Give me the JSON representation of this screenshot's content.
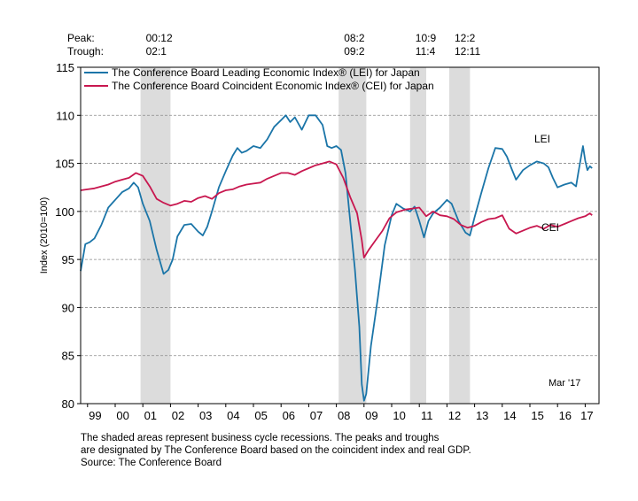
{
  "chart_data": {
    "type": "line",
    "title": "",
    "xlabel": "",
    "ylabel": "Index (2010=100)",
    "ylim": [
      80,
      115
    ],
    "yticks": [
      80,
      85,
      90,
      95,
      100,
      105,
      110,
      115
    ],
    "xlim": [
      1998.75,
      2017.5
    ],
    "xtick_labels": [
      "99",
      "00",
      "01",
      "02",
      "03",
      "04",
      "05",
      "06",
      "07",
      "08",
      "09",
      "10",
      "11",
      "12",
      "13",
      "14",
      "15",
      "16",
      "17"
    ],
    "grid": "horizontal dashed",
    "legend_placement": "top-left",
    "date_annotation": "Mar '17",
    "cycle_labels": {
      "peak_label": "Peak:",
      "trough_label": "Trough:",
      "items": [
        {
          "peak": "00:12",
          "trough": "02:1"
        },
        {
          "peak": "08:2",
          "trough": "09:2"
        },
        {
          "peak": "10:9",
          "trough": "11:4"
        },
        {
          "peak": "12:2",
          "trough": "12:11"
        }
      ]
    },
    "recessions": [
      {
        "start": 2000.917,
        "end": 2002.0
      },
      {
        "start": 2008.083,
        "end": 2009.083
      },
      {
        "start": 2010.667,
        "end": 2011.25
      },
      {
        "start": 2012.083,
        "end": 2012.833
      }
    ],
    "series": [
      {
        "name": "The Conference Board Leading Economic Index® (LEI) for Japan",
        "short_label": "LEI",
        "color": "#1b75a8",
        "points": [
          [
            1998.75,
            93.8
          ],
          [
            1998.92,
            96.6
          ],
          [
            1999.08,
            96.8
          ],
          [
            1999.25,
            97.2
          ],
          [
            1999.5,
            98.6
          ],
          [
            1999.75,
            100.4
          ],
          [
            2000.0,
            101.2
          ],
          [
            2000.25,
            102.0
          ],
          [
            2000.5,
            102.4
          ],
          [
            2000.67,
            103.0
          ],
          [
            2000.83,
            102.5
          ],
          [
            2001.0,
            100.8
          ],
          [
            2001.25,
            99.0
          ],
          [
            2001.5,
            96.0
          ],
          [
            2001.75,
            93.5
          ],
          [
            2001.92,
            93.9
          ],
          [
            2002.08,
            95.0
          ],
          [
            2002.25,
            97.4
          ],
          [
            2002.5,
            98.6
          ],
          [
            2002.75,
            98.7
          ],
          [
            2003.0,
            97.9
          ],
          [
            2003.17,
            97.5
          ],
          [
            2003.33,
            98.4
          ],
          [
            2003.5,
            100.0
          ],
          [
            2003.75,
            102.5
          ],
          [
            2004.0,
            104.2
          ],
          [
            2004.25,
            105.8
          ],
          [
            2004.42,
            106.6
          ],
          [
            2004.58,
            106.1
          ],
          [
            2004.75,
            106.3
          ],
          [
            2005.0,
            106.8
          ],
          [
            2005.25,
            106.6
          ],
          [
            2005.5,
            107.5
          ],
          [
            2005.75,
            108.8
          ],
          [
            2006.0,
            109.5
          ],
          [
            2006.17,
            110.0
          ],
          [
            2006.33,
            109.3
          ],
          [
            2006.5,
            109.8
          ],
          [
            2006.75,
            108.5
          ],
          [
            2007.0,
            110.0
          ],
          [
            2007.25,
            110.0
          ],
          [
            2007.5,
            109.0
          ],
          [
            2007.67,
            106.8
          ],
          [
            2007.83,
            106.6
          ],
          [
            2008.0,
            106.8
          ],
          [
            2008.17,
            106.4
          ],
          [
            2008.33,
            104.0
          ],
          [
            2008.5,
            99.0
          ],
          [
            2008.67,
            94.0
          ],
          [
            2008.83,
            88.0
          ],
          [
            2008.92,
            82.0
          ],
          [
            2009.0,
            80.3
          ],
          [
            2009.08,
            81.0
          ],
          [
            2009.25,
            86.0
          ],
          [
            2009.5,
            91.0
          ],
          [
            2009.75,
            96.5
          ],
          [
            2010.0,
            99.6
          ],
          [
            2010.17,
            100.8
          ],
          [
            2010.42,
            100.3
          ],
          [
            2010.67,
            100.0
          ],
          [
            2010.83,
            100.5
          ],
          [
            2011.0,
            99.0
          ],
          [
            2011.17,
            97.3
          ],
          [
            2011.33,
            99.0
          ],
          [
            2011.5,
            99.8
          ],
          [
            2011.75,
            100.4
          ],
          [
            2012.0,
            101.2
          ],
          [
            2012.17,
            100.8
          ],
          [
            2012.42,
            99.0
          ],
          [
            2012.67,
            97.8
          ],
          [
            2012.83,
            97.5
          ],
          [
            2013.0,
            99.4
          ],
          [
            2013.25,
            102.0
          ],
          [
            2013.5,
            104.5
          ],
          [
            2013.75,
            106.6
          ],
          [
            2014.0,
            106.5
          ],
          [
            2014.17,
            105.7
          ],
          [
            2014.33,
            104.5
          ],
          [
            2014.5,
            103.3
          ],
          [
            2014.75,
            104.3
          ],
          [
            2015.0,
            104.8
          ],
          [
            2015.25,
            105.2
          ],
          [
            2015.5,
            105.0
          ],
          [
            2015.67,
            104.6
          ],
          [
            2015.83,
            103.5
          ],
          [
            2016.0,
            102.5
          ],
          [
            2016.25,
            102.8
          ],
          [
            2016.5,
            103.0
          ],
          [
            2016.67,
            102.6
          ],
          [
            2016.75,
            104.0
          ],
          [
            2016.92,
            106.8
          ],
          [
            2017.0,
            105.3
          ],
          [
            2017.08,
            104.3
          ],
          [
            2017.17,
            104.7
          ],
          [
            2017.25,
            104.5
          ]
        ]
      },
      {
        "name": "The Conference Board Coincident Economic Index® (CEI) for Japan",
        "short_label": "CEI",
        "color": "#c8174f",
        "points": [
          [
            1998.75,
            102.2
          ],
          [
            1999.0,
            102.3
          ],
          [
            1999.25,
            102.4
          ],
          [
            1999.5,
            102.6
          ],
          [
            1999.75,
            102.8
          ],
          [
            2000.0,
            103.1
          ],
          [
            2000.25,
            103.3
          ],
          [
            2000.5,
            103.5
          ],
          [
            2000.75,
            104.0
          ],
          [
            2001.0,
            103.7
          ],
          [
            2001.25,
            102.6
          ],
          [
            2001.5,
            101.3
          ],
          [
            2001.75,
            100.9
          ],
          [
            2002.0,
            100.6
          ],
          [
            2002.25,
            100.8
          ],
          [
            2002.5,
            101.1
          ],
          [
            2002.75,
            101.0
          ],
          [
            2003.0,
            101.4
          ],
          [
            2003.25,
            101.6
          ],
          [
            2003.5,
            101.3
          ],
          [
            2003.75,
            101.9
          ],
          [
            2004.0,
            102.2
          ],
          [
            2004.25,
            102.3
          ],
          [
            2004.5,
            102.6
          ],
          [
            2004.75,
            102.8
          ],
          [
            2005.0,
            102.9
          ],
          [
            2005.25,
            103.0
          ],
          [
            2005.5,
            103.4
          ],
          [
            2005.75,
            103.7
          ],
          [
            2006.0,
            104.0
          ],
          [
            2006.25,
            104.0
          ],
          [
            2006.5,
            103.8
          ],
          [
            2006.75,
            104.2
          ],
          [
            2007.0,
            104.5
          ],
          [
            2007.25,
            104.8
          ],
          [
            2007.5,
            105.0
          ],
          [
            2007.75,
            105.2
          ],
          [
            2008.0,
            104.9
          ],
          [
            2008.25,
            103.5
          ],
          [
            2008.5,
            101.5
          ],
          [
            2008.75,
            99.8
          ],
          [
            2008.92,
            97.0
          ],
          [
            2009.0,
            95.2
          ],
          [
            2009.17,
            96.0
          ],
          [
            2009.42,
            97.0
          ],
          [
            2009.67,
            98.0
          ],
          [
            2009.92,
            99.3
          ],
          [
            2010.17,
            99.9
          ],
          [
            2010.5,
            100.2
          ],
          [
            2010.75,
            100.3
          ],
          [
            2011.0,
            100.4
          ],
          [
            2011.25,
            99.5
          ],
          [
            2011.5,
            100.0
          ],
          [
            2011.75,
            99.6
          ],
          [
            2012.0,
            99.5
          ],
          [
            2012.25,
            99.2
          ],
          [
            2012.5,
            98.6
          ],
          [
            2012.75,
            98.3
          ],
          [
            2013.0,
            98.5
          ],
          [
            2013.25,
            98.9
          ],
          [
            2013.5,
            99.2
          ],
          [
            2013.75,
            99.3
          ],
          [
            2014.0,
            99.6
          ],
          [
            2014.25,
            98.2
          ],
          [
            2014.5,
            97.7
          ],
          [
            2014.75,
            98.0
          ],
          [
            2015.0,
            98.3
          ],
          [
            2015.25,
            98.5
          ],
          [
            2015.5,
            98.2
          ],
          [
            2015.75,
            98.6
          ],
          [
            2016.0,
            98.4
          ],
          [
            2016.25,
            98.7
          ],
          [
            2016.5,
            99.0
          ],
          [
            2016.75,
            99.3
          ],
          [
            2017.0,
            99.5
          ],
          [
            2017.17,
            99.8
          ],
          [
            2017.25,
            99.6
          ]
        ]
      }
    ]
  },
  "footnote": {
    "line1": "The shaded areas represent business cycle recessions. The peaks and troughs",
    "line2": "are designated by The Conference Board based on the coincident index and real GDP.",
    "line3": "Source: The Conference Board"
  }
}
